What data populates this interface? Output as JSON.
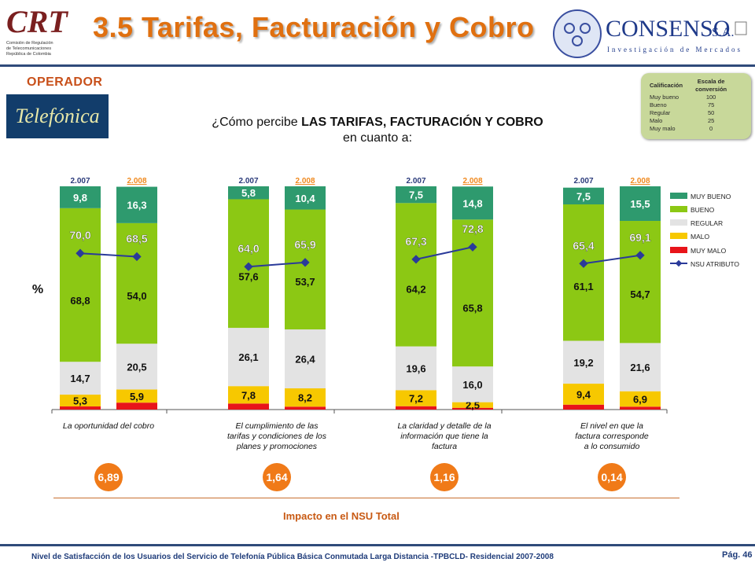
{
  "header": {
    "title": "3.5 Tarifas, Facturación y Cobro",
    "crt_logo": {
      "text": "CRT",
      "subtitle_lines": [
        "Comisión de Regulación",
        "de Telecomunicaciones",
        "República de Colombia"
      ]
    },
    "consenso_logo": {
      "name": "CONSENSO",
      "suffix": "S.A.",
      "tagline": "Investigación de Mercados"
    }
  },
  "operator": {
    "label": "OPERADOR",
    "name": "Telefónica"
  },
  "question": {
    "prefix": "¿Cómo percibe ",
    "emphasis": "LAS TARIFAS, FACTURACIÓN Y COBRO",
    "line2": "en cuanto a:"
  },
  "scale_box": {
    "header_left": "Calificación",
    "header_right": "Escala de conversión",
    "rows": [
      {
        "label": "Muy bueno",
        "value": "100"
      },
      {
        "label": "Bueno",
        "value": "75"
      },
      {
        "label": "Regular",
        "value": "50"
      },
      {
        "label": "Malo",
        "value": "25"
      },
      {
        "label": "Muy malo",
        "value": "0"
      }
    ]
  },
  "chart_data": {
    "type": "bar",
    "stacked": true,
    "unit_label": "%",
    "ylim": [
      0,
      100
    ],
    "categories": [
      "La oportunidad del cobro",
      "El cumplimiento de las tarifas y condiciones de los planes y promociones",
      "La claridad y detalle de la información que tiene la factura",
      "El nivel en que la factura corresponde a lo consumido"
    ],
    "category_lines": [
      [
        "La oportunidad  del cobro"
      ],
      [
        "El cumplimiento de las",
        "tarifas y condiciones de los",
        "planes y promociones"
      ],
      [
        "La claridad y detalle de la",
        "información que tiene la",
        "factura"
      ],
      [
        "El nivel en que la",
        "factura corresponde",
        "a lo consumido"
      ]
    ],
    "years": [
      "2.007",
      "2.008"
    ],
    "series": [
      {
        "name": "MUY MALO",
        "color": "#e8141a",
        "values": [
          [
            1.4,
            3.1
          ],
          [
            2.7,
            1.3
          ],
          [
            1.5,
            0.8
          ],
          [
            2.2,
            1.3
          ]
        ]
      },
      {
        "name": "MALO",
        "color": "#f7c800",
        "values": [
          [
            5.3,
            5.9
          ],
          [
            7.8,
            8.2
          ],
          [
            7.2,
            2.5
          ],
          [
            9.4,
            6.9
          ]
        ]
      },
      {
        "name": "REGULAR",
        "color": "#e3e3e3",
        "values": [
          [
            14.7,
            20.5
          ],
          [
            26.1,
            26.4
          ],
          [
            19.6,
            16.0
          ],
          [
            19.2,
            21.6
          ]
        ]
      },
      {
        "name": "BUENO",
        "color": "#8cc814",
        "values": [
          [
            68.8,
            54.0
          ],
          [
            57.6,
            53.7
          ],
          [
            64.2,
            65.8
          ],
          [
            61.1,
            54.7
          ]
        ]
      },
      {
        "name": "MUY BUENO",
        "color": "#2e9a6e",
        "values": [
          [
            9.8,
            16.3
          ],
          [
            5.8,
            10.4
          ],
          [
            7.5,
            14.8
          ],
          [
            7.5,
            15.5
          ]
        ]
      }
    ],
    "nsu_series": {
      "name": "NSU ATRIBUTO",
      "color": "#2a3a9a",
      "values": [
        [
          70.0,
          68.5
        ],
        [
          64.0,
          65.9
        ],
        [
          67.3,
          72.8
        ],
        [
          65.4,
          69.1
        ]
      ]
    },
    "legend_order": [
      "MUY BUENO",
      "BUENO",
      "REGULAR",
      "MALO",
      "MUY MALO",
      "NSU ATRIBUTO"
    ],
    "legend_position": "right",
    "impact_values": [
      "6,89",
      "1,64",
      "1,16",
      "0,14"
    ],
    "impact_label": "Impacto en el NSU Total"
  },
  "footer": {
    "text": "Nivel de Satisfacción de los Usuarios del Servicio de Telefonía Pública Básica Conmutada Larga Distancia -TPBCLD- Residencial 2007-2008",
    "page": "Pág. 46"
  },
  "colors": {
    "title": "#e07010",
    "header_rule": "#2f4a7a",
    "impact_circle": "#f07a18",
    "year_2008": "#f08a20"
  }
}
